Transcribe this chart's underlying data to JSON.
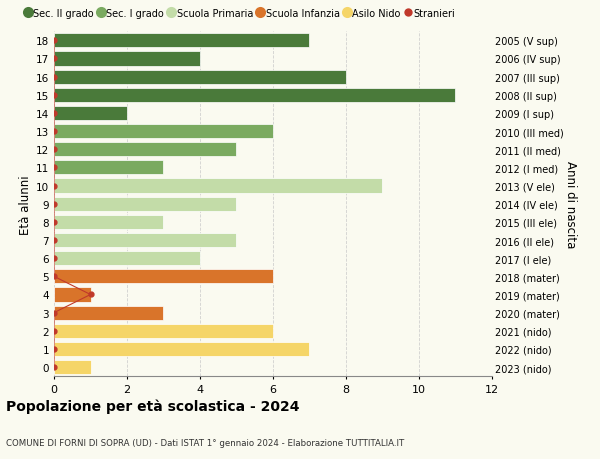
{
  "ages": [
    18,
    17,
    16,
    15,
    14,
    13,
    12,
    11,
    10,
    9,
    8,
    7,
    6,
    5,
    4,
    3,
    2,
    1,
    0
  ],
  "years": [
    "2005 (V sup)",
    "2006 (IV sup)",
    "2007 (III sup)",
    "2008 (II sup)",
    "2009 (I sup)",
    "2010 (III med)",
    "2011 (II med)",
    "2012 (I med)",
    "2013 (V ele)",
    "2014 (IV ele)",
    "2015 (III ele)",
    "2016 (II ele)",
    "2017 (I ele)",
    "2018 (mater)",
    "2019 (mater)",
    "2020 (mater)",
    "2021 (nido)",
    "2022 (nido)",
    "2023 (nido)"
  ],
  "values": [
    7,
    4,
    8,
    11,
    2,
    6,
    5,
    3,
    9,
    5,
    3,
    5,
    4,
    6,
    1,
    3,
    6,
    7,
    1
  ],
  "bar_colors": [
    "#4a7a3a",
    "#4a7a3a",
    "#4a7a3a",
    "#4a7a3a",
    "#4a7a3a",
    "#7aaa60",
    "#7aaa60",
    "#7aaa60",
    "#c3dca8",
    "#c3dca8",
    "#c3dca8",
    "#c3dca8",
    "#c3dca8",
    "#d9742a",
    "#d9742a",
    "#d9742a",
    "#f5d568",
    "#f5d568",
    "#f5d568"
  ],
  "stranieri_x": [
    0,
    0,
    0,
    0,
    0,
    0,
    0,
    0,
    0,
    0,
    0,
    0,
    0,
    0,
    1,
    0,
    0,
    0,
    0
  ],
  "legend_labels": [
    "Sec. II grado",
    "Sec. I grado",
    "Scuola Primaria",
    "Scuola Infanzia",
    "Asilo Nido",
    "Stranieri"
  ],
  "legend_colors": [
    "#4a7a3a",
    "#7aaa60",
    "#c3dca8",
    "#d9742a",
    "#f5d568",
    "#c0392b"
  ],
  "title": "Popolazione per età scolastica - 2024",
  "subtitle": "COMUNE DI FORNI DI SOPRA (UD) - Dati ISTAT 1° gennaio 2024 - Elaborazione TUTTITALIA.IT",
  "ylabel_left": "Età alunni",
  "ylabel_right": "Anni di nascita",
  "xlim": [
    0,
    12
  ],
  "background_color": "#fafaf0",
  "grid_color": "#cccccc"
}
